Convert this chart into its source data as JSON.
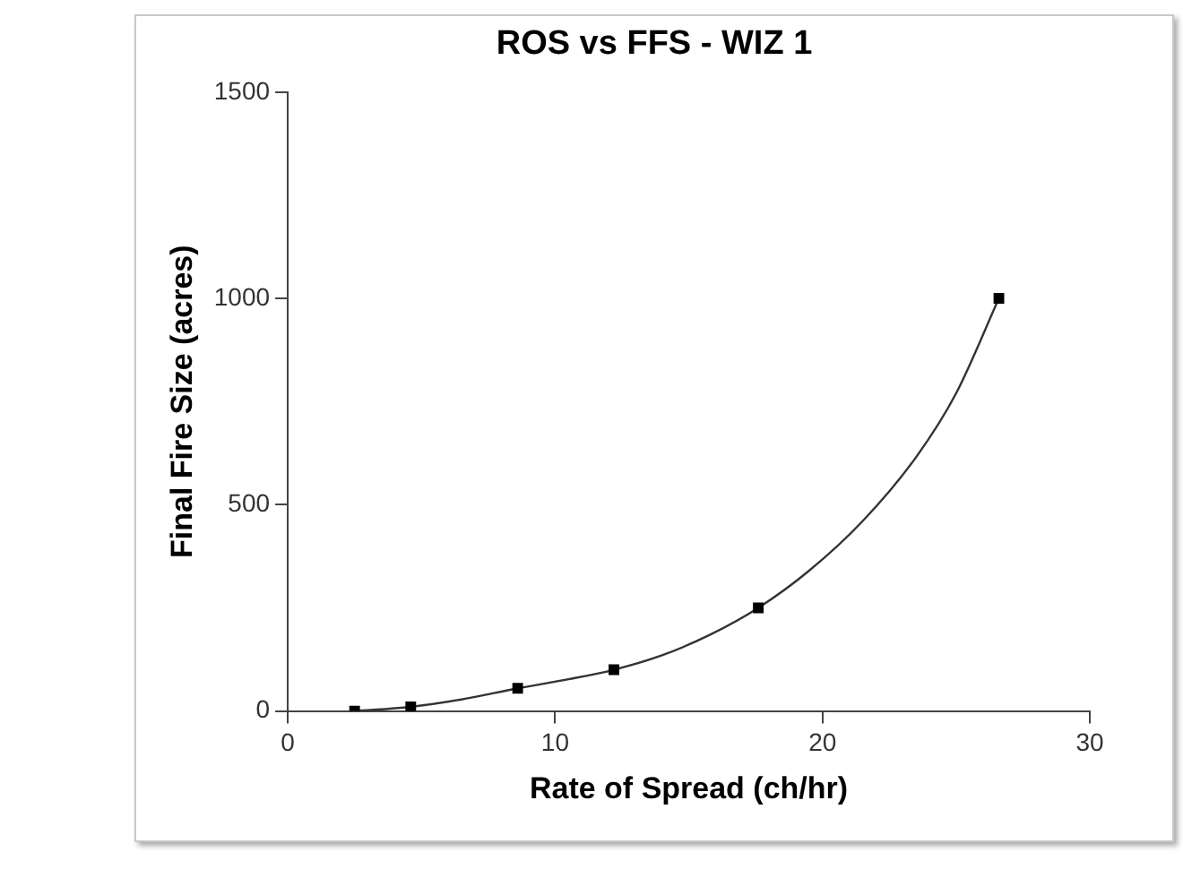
{
  "chart_data": {
    "type": "scatter",
    "title": "ROS vs FFS - WIZ 1",
    "xlabel": "Rate of Spread (ch/hr)",
    "ylabel": "Final Fire Size (acres)",
    "xlim": [
      0,
      30
    ],
    "xticks": [
      0,
      10,
      20,
      30
    ],
    "ylim": [
      0,
      1500
    ],
    "yticks": [
      0,
      500,
      1000,
      1500
    ],
    "grid": false,
    "legend": false,
    "marker": "square",
    "series": [
      {
        "type": "scatter",
        "color": "#000000",
        "x": [
          2.5,
          4.6,
          8.6,
          12.2,
          17.6,
          26.6
        ],
        "values": [
          0,
          10,
          55,
          100,
          250,
          1000
        ]
      },
      {
        "type": "line",
        "color": "#333333",
        "marker": "none",
        "x": [
          2.5,
          4.6,
          6.5,
          8.6,
          10.5,
          12.2,
          14,
          15.8,
          17.6,
          19.5,
          21.5,
          23.5,
          25,
          26.6
        ],
        "values": [
          0,
          10,
          28,
          55,
          77,
          100,
          135,
          185,
          250,
          340,
          460,
          615,
          770,
          1000
        ]
      }
    ]
  }
}
